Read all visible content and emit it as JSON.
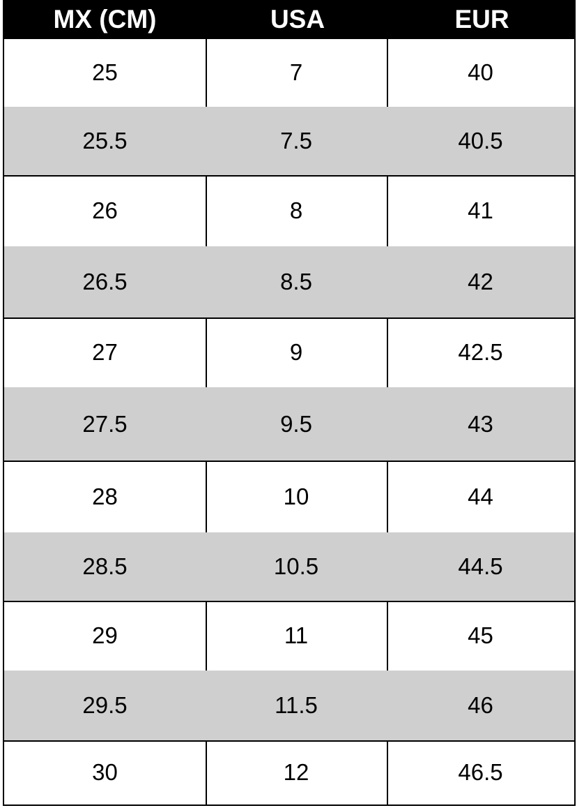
{
  "table": {
    "header": [
      "MX (CM)",
      "USA",
      "EUR"
    ],
    "rows": [
      [
        "25",
        "7",
        "40"
      ],
      [
        "25.5",
        "7.5",
        "40.5"
      ],
      [
        "26",
        "8",
        "41"
      ],
      [
        "26.5",
        "8.5",
        "42"
      ],
      [
        "27",
        "9",
        "42.5"
      ],
      [
        "27.5",
        "9.5",
        "43"
      ],
      [
        "28",
        "10",
        "44"
      ],
      [
        "28.5",
        "10.5",
        "44.5"
      ],
      [
        "29",
        "11",
        "45"
      ],
      [
        "29.5",
        "11.5",
        "46"
      ],
      [
        "30",
        "12",
        "46.5"
      ]
    ]
  }
}
